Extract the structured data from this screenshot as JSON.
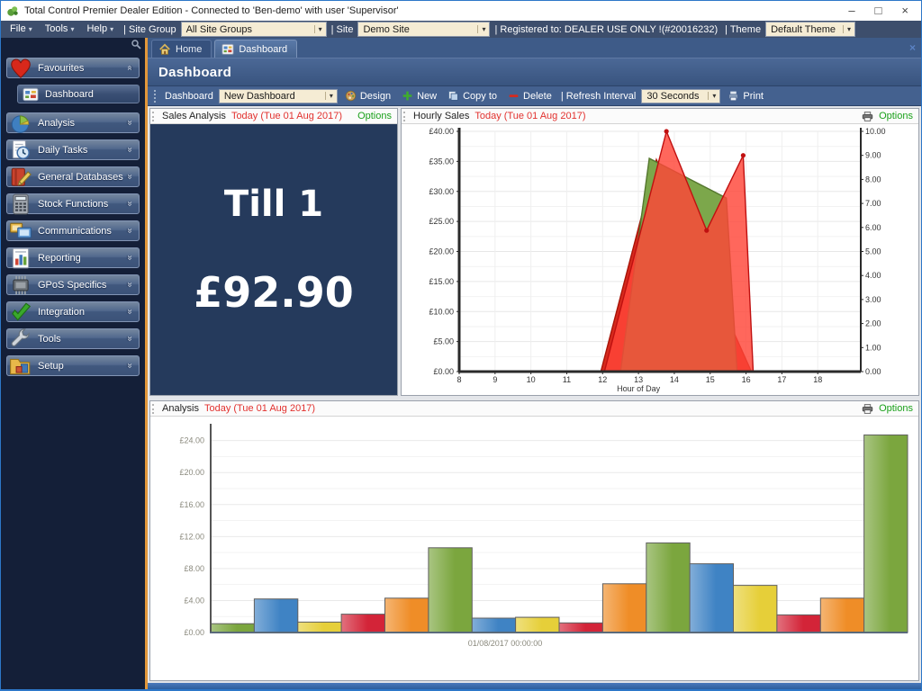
{
  "window": {
    "title": "Total Control Premier Dealer Edition - Connected to 'Ben-demo' with user 'Supervisor'",
    "controls": {
      "minimize": "–",
      "maximize": "□",
      "close": "×"
    }
  },
  "menubar": {
    "menus": [
      {
        "label": "File"
      },
      {
        "label": "Tools"
      },
      {
        "label": "Help"
      }
    ],
    "site_group_label": "| Site Group",
    "site_group_value": "All Site Groups",
    "site_label": "| Site",
    "site_value": "Demo Site",
    "registered_label": "| Registered to: DEALER USE ONLY !(#20016232)",
    "theme_label": "| Theme",
    "theme_value": "Default Theme"
  },
  "tabs": {
    "home": "Home",
    "dashboard": "Dashboard",
    "close": "×"
  },
  "page_title": "Dashboard",
  "toolbar": {
    "dashboard_label": "Dashboard",
    "dashboard_value": "New Dashboard",
    "design": "Design",
    "new": "New",
    "copy_to": "Copy to",
    "delete": "Delete",
    "refresh_label": "| Refresh Interval",
    "refresh_value": "30 Seconds",
    "print": "Print"
  },
  "sidebar": {
    "items": [
      {
        "label": "Favourites",
        "icon": "heart",
        "expanded": true
      },
      {
        "label": "Dashboard",
        "icon": "dashboard",
        "sub": true
      },
      {
        "label": "Analysis",
        "icon": "pie"
      },
      {
        "label": "Daily Tasks",
        "icon": "tasks"
      },
      {
        "label": "General Databases",
        "icon": "book"
      },
      {
        "label": "Stock Functions",
        "icon": "calculator"
      },
      {
        "label": "Communications",
        "icon": "comm"
      },
      {
        "label": "Reporting",
        "icon": "report"
      },
      {
        "label": "GPoS Specifics",
        "icon": "chip"
      },
      {
        "label": "Integration",
        "icon": "check"
      },
      {
        "label": "Tools",
        "icon": "wrench"
      },
      {
        "label": "Setup",
        "icon": "folder"
      }
    ]
  },
  "panels": {
    "sales": {
      "title": "Sales Analysis",
      "date": "Today (Tue 01 Aug 2017)",
      "options": "Options",
      "till_name": "Till 1",
      "till_value": "£92.90"
    },
    "hourly": {
      "title": "Hourly Sales",
      "date": "Today (Tue 01 Aug 2017)",
      "options": "Options"
    },
    "analysis": {
      "title": "Analysis",
      "date": "Today (Tue 01 Aug 2017)",
      "options": "Options"
    }
  },
  "colors": {
    "chrome_blue": "#44618f",
    "sidebar_navy": "#141f38",
    "tile_navy": "#253a5c",
    "combo_beige": "#f5ecd4",
    "date_red": "#e2312e",
    "options_green": "#1ba11b",
    "splitter_orange": "#e2973a"
  },
  "chart_data": [
    {
      "id": "hourly_sales",
      "type": "area",
      "title": "Hourly Sales",
      "xlabel": "Hour of Day",
      "x_ticks": [
        8,
        9,
        10,
        11,
        12,
        13,
        14,
        15,
        16,
        17,
        18
      ],
      "x_range": [
        8,
        19.2
      ],
      "y_left": {
        "range": [
          0,
          40
        ],
        "step": 5,
        "tick_labels": [
          "£0.00",
          "£5.00",
          "£10.00",
          "£15.00",
          "£20.00",
          "£25.00",
          "£30.00",
          "£35.00",
          "£40.00"
        ]
      },
      "y_right": {
        "range": [
          0,
          10
        ],
        "step": 1,
        "tick_labels": [
          "0.00",
          "1.00",
          "2.00",
          "3.00",
          "4.00",
          "5.00",
          "6.00",
          "7.00",
          "8.00",
          "9.00",
          "10.00"
        ]
      },
      "grid": true,
      "series": [
        {
          "name": "sales-area-dark-red",
          "color": "#d62a1d",
          "stroke": "#a81408",
          "opacity": 1,
          "points": [
            [
              11.95,
              0
            ],
            [
              13.5,
              35.3
            ],
            [
              16.15,
              0
            ]
          ]
        },
        {
          "name": "sales-area-green",
          "color": "#7ca74b",
          "stroke": "#55772f",
          "opacity": 1,
          "points": [
            [
              12.5,
              0
            ],
            [
              13.3,
              35.5
            ],
            [
              15.45,
              28.9
            ],
            [
              15.75,
              0
            ]
          ]
        },
        {
          "name": "sales-area-bright-red",
          "color": "#ff4538",
          "stroke": "#c01010",
          "opacity": 0.82,
          "markers": true,
          "points": [
            [
              12.05,
              0
            ],
            [
              13.78,
              40
            ],
            [
              14.9,
              23.5
            ],
            [
              15.92,
              36
            ],
            [
              16.2,
              0
            ]
          ]
        }
      ]
    },
    {
      "id": "analysis_bars",
      "type": "bar",
      "title": "Analysis",
      "xlabel": "01/08/2017 00:00:00",
      "y_range": [
        0,
        25.2
      ],
      "y_step_label": 4,
      "y_step_grid": 2,
      "tick_labels": [
        "£0.00",
        "£4.00",
        "£8.00",
        "£12.00",
        "£16.00",
        "£20.00",
        "£24.00"
      ],
      "grid": true,
      "values": [
        1.1,
        4.2,
        1.3,
        2.3,
        4.3,
        10.6,
        1.8,
        1.9,
        1.2,
        6.1,
        11.2,
        8.6,
        5.9,
        2.2,
        4.3,
        24.7
      ],
      "bar_colors": [
        "#7ba63e",
        "#3f83c4",
        "#e6cf39",
        "#d32438",
        "#ef8d27"
      ]
    }
  ]
}
